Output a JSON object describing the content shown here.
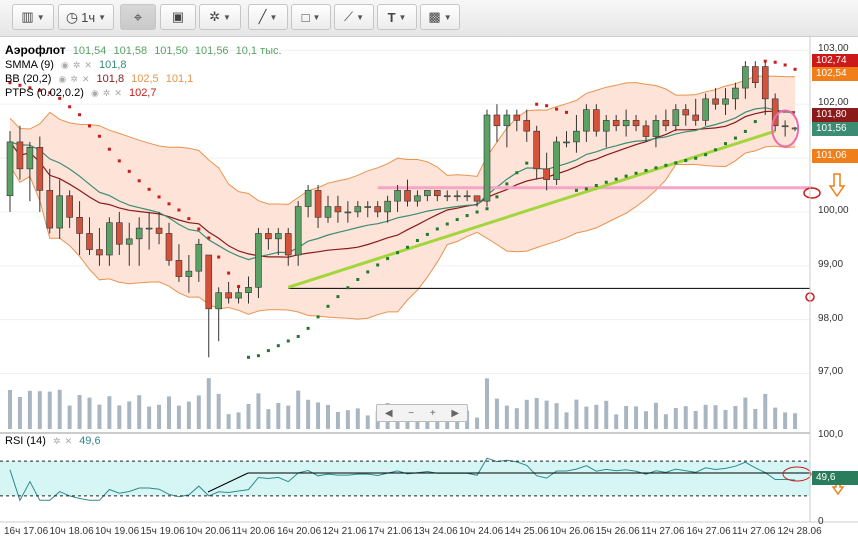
{
  "toolbar": {
    "timeframe": "1ч",
    "text_tool": "T"
  },
  "legend": {
    "symbol": "Аэрофлот",
    "open": "101,54",
    "high": "101,58",
    "low": "101,50",
    "close": "101,56",
    "volume": "10,1 тыс.",
    "smma_label": "SMMA (9)",
    "smma_value": "101,8",
    "bb_label": "BB (20,2)",
    "bb_mid": "101,8",
    "bb_up": "102,5",
    "bb_low": "101,1",
    "ptps_label": "PTPS (0.02,0.2)",
    "ptps_value": "102,7",
    "rsi_label": "RSI (14)",
    "rsi_value": "49,6"
  },
  "price_labels": {
    "ptps": "102,74",
    "bb_up": "102,54",
    "smma": "101,80",
    "close": "101,56",
    "bb_low": "101,06",
    "rsi": "49,6"
  },
  "colors": {
    "up": "#5aa264",
    "down": "#d4513a",
    "ptps_up": "#1f7a2a",
    "ptps_down": "#cc1a1a",
    "bb_fill": "#fde3d8",
    "bb_line": "#e8944e",
    "smma": "#3c8c74",
    "bb_mid": "#8b1a1a",
    "trend": "#a3d63a",
    "volume": "#a9b6c2",
    "rsi_fill": "#d6f6f6",
    "rsi_line": "#2f8a8a",
    "level_pink": "#f5a5c5"
  },
  "chart_data": {
    "type": "candlestick",
    "y_axis_ticks": [
      "103,00",
      "102,00",
      "101,00",
      "100,00",
      "99,00",
      "98,00",
      "97,00"
    ],
    "ylim": [
      96.6,
      103.1
    ],
    "rsi_axis_ticks": [
      "100,0",
      "50",
      "0"
    ],
    "x_ticks": [
      "16ч 17.06",
      "10ч 18.06",
      "10ч 19.06",
      "15ч 19.06",
      "10ч 20.06",
      "11ч 20.06",
      "16ч 20.06",
      "12ч 21.06",
      "17ч 21.06",
      "13ч 24.06",
      "10ч 24.06",
      "14ч 25.06",
      "10ч 26.06",
      "15ч 26.06",
      "11ч 27.06",
      "16ч 27.06",
      "11ч 27.06",
      "12ч 28.06"
    ],
    "candles": [
      [
        100.3,
        101.5,
        100.0,
        101.3
      ],
      [
        101.3,
        101.6,
        100.6,
        100.8
      ],
      [
        100.8,
        101.3,
        100.2,
        101.2
      ],
      [
        101.2,
        101.4,
        100.0,
        100.4
      ],
      [
        100.4,
        100.8,
        99.6,
        99.7
      ],
      [
        99.7,
        100.6,
        99.5,
        100.3
      ],
      [
        100.3,
        100.4,
        99.7,
        99.9
      ],
      [
        99.9,
        100.2,
        99.2,
        99.6
      ],
      [
        99.6,
        99.9,
        99.2,
        99.3
      ],
      [
        99.3,
        99.7,
        99.0,
        99.2
      ],
      [
        99.2,
        99.9,
        99.0,
        99.8
      ],
      [
        99.8,
        100.0,
        99.2,
        99.4
      ],
      [
        99.4,
        99.8,
        99.0,
        99.5
      ],
      [
        99.5,
        99.9,
        99.0,
        99.7
      ],
      [
        99.7,
        100.0,
        99.3,
        99.7
      ],
      [
        99.7,
        100.0,
        99.4,
        99.6
      ],
      [
        99.6,
        99.8,
        99.0,
        99.1
      ],
      [
        99.1,
        99.4,
        98.7,
        98.8
      ],
      [
        98.8,
        99.2,
        98.5,
        98.9
      ],
      [
        98.9,
        99.5,
        98.7,
        99.4
      ],
      [
        99.2,
        99.2,
        97.3,
        98.2
      ],
      [
        98.2,
        98.6,
        97.6,
        98.5
      ],
      [
        98.5,
        98.7,
        98.3,
        98.4
      ],
      [
        98.4,
        98.6,
        98.3,
        98.5
      ],
      [
        98.5,
        98.8,
        98.3,
        98.6
      ],
      [
        98.6,
        99.7,
        98.4,
        99.6
      ],
      [
        99.6,
        99.7,
        99.3,
        99.5
      ],
      [
        99.5,
        99.7,
        99.2,
        99.6
      ],
      [
        99.6,
        99.7,
        99.0,
        99.2
      ],
      [
        99.2,
        100.2,
        99.0,
        100.1
      ],
      [
        100.1,
        100.5,
        99.9,
        100.4
      ],
      [
        100.4,
        100.5,
        99.7,
        99.9
      ],
      [
        99.9,
        100.3,
        99.8,
        100.1
      ],
      [
        100.1,
        100.3,
        99.8,
        100.0
      ],
      [
        100.0,
        100.2,
        99.8,
        100.0
      ],
      [
        100.0,
        100.2,
        99.9,
        100.1
      ],
      [
        100.1,
        100.2,
        99.9,
        100.1
      ],
      [
        100.1,
        100.2,
        99.9,
        100.0
      ],
      [
        100.0,
        100.3,
        99.8,
        100.2
      ],
      [
        100.2,
        100.5,
        100.0,
        100.4
      ],
      [
        100.4,
        100.6,
        100.1,
        100.2
      ],
      [
        100.2,
        100.4,
        100.1,
        100.3
      ],
      [
        100.3,
        100.4,
        100.2,
        100.4
      ],
      [
        100.4,
        100.4,
        100.2,
        100.3
      ],
      [
        100.3,
        100.4,
        100.2,
        100.3
      ],
      [
        100.3,
        100.4,
        100.2,
        100.3
      ],
      [
        100.3,
        100.4,
        100.2,
        100.3
      ],
      [
        100.3,
        100.3,
        100.1,
        100.2
      ],
      [
        100.2,
        101.9,
        100.1,
        101.8
      ],
      [
        101.8,
        102.0,
        101.3,
        101.6
      ],
      [
        101.6,
        101.9,
        101.2,
        101.8
      ],
      [
        101.8,
        101.9,
        101.5,
        101.7
      ],
      [
        101.7,
        101.9,
        101.3,
        101.5
      ],
      [
        101.5,
        101.6,
        100.6,
        100.8
      ],
      [
        100.8,
        101.1,
        100.4,
        100.6
      ],
      [
        100.6,
        101.4,
        100.5,
        101.3
      ],
      [
        101.3,
        101.5,
        101.2,
        101.3
      ],
      [
        101.3,
        101.8,
        101.1,
        101.5
      ],
      [
        101.5,
        102.0,
        101.3,
        101.9
      ],
      [
        101.9,
        102.0,
        101.4,
        101.5
      ],
      [
        101.5,
        101.8,
        101.2,
        101.7
      ],
      [
        101.7,
        101.8,
        101.5,
        101.6
      ],
      [
        101.6,
        101.9,
        101.4,
        101.7
      ],
      [
        101.7,
        101.8,
        101.5,
        101.6
      ],
      [
        101.6,
        101.7,
        101.3,
        101.4
      ],
      [
        101.4,
        101.8,
        101.2,
        101.7
      ],
      [
        101.7,
        101.9,
        101.5,
        101.6
      ],
      [
        101.6,
        102.0,
        101.5,
        101.9
      ],
      [
        101.9,
        102.0,
        101.6,
        101.8
      ],
      [
        101.8,
        102.1,
        101.6,
        101.7
      ],
      [
        101.7,
        102.2,
        101.6,
        102.1
      ],
      [
        102.1,
        102.3,
        101.9,
        102.0
      ],
      [
        102.0,
        102.3,
        101.8,
        102.1
      ],
      [
        102.1,
        102.4,
        101.9,
        102.3
      ],
      [
        102.3,
        102.8,
        102.1,
        102.7
      ],
      [
        102.7,
        102.8,
        102.3,
        102.4
      ],
      [
        102.7,
        102.8,
        101.8,
        102.1
      ],
      [
        102.1,
        102.2,
        101.5,
        101.6
      ],
      [
        101.6,
        101.7,
        101.4,
        101.6
      ],
      [
        101.54,
        101.58,
        101.5,
        101.56
      ]
    ],
    "level_lines": [
      {
        "price": 100.45,
        "color": "pink"
      },
      {
        "price": 98.58,
        "color": "black"
      }
    ],
    "rsi_bounds": [
      70,
      30
    ]
  }
}
